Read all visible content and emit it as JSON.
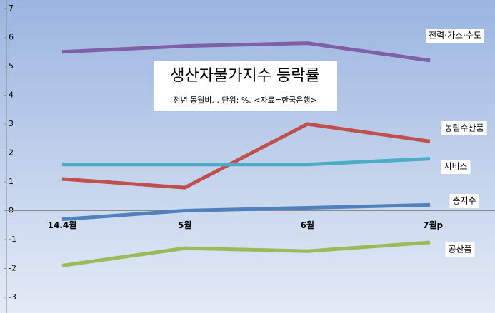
{
  "chart_data": {
    "type": "line",
    "title": "생산자물가지수 등락률",
    "subtitle": "전년 동월비. , 단위: %. <자료=한국은행>",
    "categories": [
      "14.4월",
      "5월",
      "6월",
      "7월p"
    ],
    "series": [
      {
        "name": "전력·가스·수도",
        "color": "#7f5fa8",
        "values": [
          5.5,
          5.7,
          5.8,
          5.2
        ]
      },
      {
        "name": "농림수산품",
        "color": "#c0504d",
        "values": [
          1.1,
          0.8,
          3.0,
          2.4
        ]
      },
      {
        "name": "서비스",
        "color": "#4bacc6",
        "values": [
          1.6,
          1.6,
          1.6,
          1.8
        ]
      },
      {
        "name": "총지수",
        "color": "#4f81bd",
        "values": [
          -0.3,
          0.0,
          0.1,
          0.2
        ]
      },
      {
        "name": "공산품",
        "color": "#9bbb59",
        "values": [
          -1.9,
          -1.3,
          -1.4,
          -1.1
        ]
      }
    ],
    "ylim": [
      -3,
      7
    ],
    "yticks": [
      -3,
      -2,
      -1,
      0,
      1,
      2,
      3,
      4,
      5,
      6,
      7
    ]
  }
}
